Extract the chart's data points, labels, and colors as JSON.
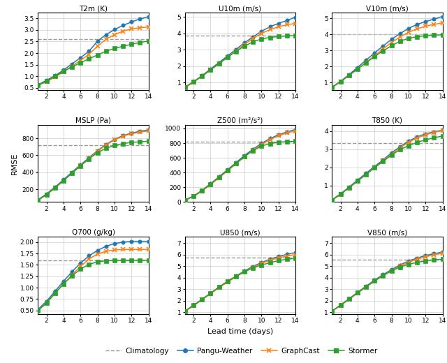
{
  "lead_times": [
    1,
    2,
    3,
    4,
    5,
    6,
    7,
    8,
    9,
    10,
    11,
    12,
    13,
    14
  ],
  "subplots": [
    {
      "title": "T2m (K)",
      "clim": 2.6,
      "ylim": [
        0.4,
        3.75
      ],
      "yticks": [
        0.5,
        1.0,
        1.5,
        2.0,
        2.5,
        3.0,
        3.5
      ],
      "pangu": [
        0.62,
        0.82,
        1.02,
        1.26,
        1.53,
        1.8,
        2.08,
        2.52,
        2.8,
        3.02,
        3.2,
        3.35,
        3.48,
        3.58
      ],
      "graphcast": [
        0.6,
        0.76,
        0.96,
        1.18,
        1.44,
        1.68,
        1.95,
        2.3,
        2.6,
        2.8,
        2.95,
        3.05,
        3.1,
        3.13
      ],
      "stormer": [
        0.6,
        0.78,
        1.0,
        1.2,
        1.4,
        1.58,
        1.75,
        1.92,
        2.08,
        2.2,
        2.3,
        2.38,
        2.46,
        2.52
      ]
    },
    {
      "title": "U10m (m/s)",
      "clim": 3.85,
      "ylim": [
        0.55,
        5.25
      ],
      "yticks": [
        1,
        2,
        3,
        4,
        5
      ],
      "pangu": [
        0.72,
        1.05,
        1.42,
        1.82,
        2.22,
        2.62,
        3.02,
        3.42,
        3.78,
        4.12,
        4.4,
        4.6,
        4.78,
        4.98
      ],
      "graphcast": [
        0.7,
        1.02,
        1.38,
        1.76,
        2.14,
        2.52,
        2.92,
        3.32,
        3.68,
        4.0,
        4.22,
        4.4,
        4.52,
        4.6
      ],
      "stormer": [
        0.72,
        1.05,
        1.4,
        1.78,
        2.16,
        2.54,
        2.9,
        3.22,
        3.48,
        3.65,
        3.75,
        3.8,
        3.84,
        3.86
      ]
    },
    {
      "title": "V10m (m/s)",
      "clim": 4.0,
      "ylim": [
        0.55,
        5.35
      ],
      "yticks": [
        1,
        2,
        3,
        4,
        5
      ],
      "pangu": [
        0.72,
        1.08,
        1.5,
        1.95,
        2.4,
        2.85,
        3.28,
        3.7,
        4.05,
        4.38,
        4.62,
        4.8,
        4.95,
        5.12
      ],
      "graphcast": [
        0.7,
        1.05,
        1.44,
        1.85,
        2.26,
        2.68,
        3.1,
        3.5,
        3.84,
        4.14,
        4.34,
        4.52,
        4.62,
        4.72
      ],
      "stormer": [
        0.72,
        1.08,
        1.46,
        1.86,
        2.24,
        2.62,
        2.98,
        3.3,
        3.58,
        3.76,
        3.86,
        3.92,
        3.95,
        3.98
      ]
    },
    {
      "title": "MSLP (Pa)",
      "clim": 720,
      "ylim": [
        50,
        960
      ],
      "yticks": [
        200,
        400,
        600,
        800
      ],
      "pangu": [
        75,
        145,
        225,
        312,
        402,
        488,
        572,
        655,
        728,
        788,
        832,
        862,
        882,
        900
      ],
      "graphcast": [
        70,
        135,
        215,
        300,
        390,
        478,
        562,
        648,
        720,
        782,
        825,
        855,
        872,
        888
      ],
      "stormer": [
        72,
        138,
        218,
        302,
        390,
        475,
        558,
        632,
        682,
        716,
        738,
        752,
        760,
        765
      ]
    },
    {
      "title": "Z500 (m²/s²)",
      "clim": 815,
      "ylim": [
        0,
        1050
      ],
      "yticks": [
        0,
        200,
        400,
        600,
        800,
        1000
      ],
      "pangu": [
        28,
        80,
        158,
        248,
        342,
        438,
        535,
        632,
        718,
        796,
        862,
        914,
        952,
        985
      ],
      "graphcast": [
        25,
        75,
        148,
        235,
        328,
        422,
        518,
        615,
        702,
        782,
        848,
        900,
        940,
        966
      ],
      "stormer": [
        25,
        78,
        155,
        245,
        338,
        432,
        526,
        618,
        698,
        760,
        795,
        812,
        820,
        825
      ]
    },
    {
      "title": "T850 (K)",
      "clim": 3.35,
      "ylim": [
        0.1,
        4.35
      ],
      "yticks": [
        1,
        2,
        3,
        4
      ],
      "pangu": [
        0.22,
        0.55,
        0.92,
        1.3,
        1.68,
        2.05,
        2.42,
        2.8,
        3.14,
        3.45,
        3.68,
        3.85,
        3.96,
        4.05
      ],
      "graphcast": [
        0.2,
        0.52,
        0.88,
        1.25,
        1.62,
        2.0,
        2.36,
        2.72,
        3.08,
        3.38,
        3.62,
        3.8,
        3.93,
        4.03
      ],
      "stormer": [
        0.2,
        0.52,
        0.88,
        1.25,
        1.62,
        1.98,
        2.33,
        2.68,
        2.98,
        3.2,
        3.38,
        3.52,
        3.63,
        3.73
      ]
    },
    {
      "title": "Q700 (g/kg)",
      "clim": 1.6,
      "ylim": [
        0.42,
        2.12
      ],
      "yticks": [
        0.5,
        0.75,
        1.0,
        1.25,
        1.5,
        1.75,
        2.0
      ],
      "pangu": [
        0.52,
        0.7,
        0.92,
        1.14,
        1.35,
        1.54,
        1.7,
        1.82,
        1.91,
        1.97,
        2.0,
        2.02,
        2.02,
        2.02
      ],
      "graphcast": [
        0.5,
        0.66,
        0.87,
        1.08,
        1.28,
        1.47,
        1.63,
        1.74,
        1.8,
        1.83,
        1.84,
        1.84,
        1.84,
        1.84
      ],
      "stormer": [
        0.5,
        0.66,
        0.88,
        1.08,
        1.26,
        1.41,
        1.51,
        1.57,
        1.59,
        1.6,
        1.6,
        1.6,
        1.6,
        1.6
      ]
    },
    {
      "title": "U850 (m/s)",
      "clim": 5.75,
      "ylim": [
        0.85,
        7.55
      ],
      "yticks": [
        1,
        2,
        3,
        4,
        5,
        6,
        7
      ],
      "pangu": [
        1.1,
        1.6,
        2.12,
        2.65,
        3.18,
        3.68,
        4.14,
        4.58,
        4.98,
        5.32,
        5.6,
        5.84,
        6.02,
        6.18
      ],
      "graphcast": [
        1.08,
        1.56,
        2.08,
        2.6,
        3.12,
        3.62,
        4.08,
        4.52,
        4.9,
        5.24,
        5.5,
        5.72,
        5.88,
        6.0
      ],
      "stormer": [
        1.1,
        1.6,
        2.12,
        2.65,
        3.18,
        3.68,
        4.12,
        4.52,
        4.85,
        5.1,
        5.3,
        5.48,
        5.6,
        5.68
      ]
    },
    {
      "title": "V850 (m/s)",
      "clim": 5.55,
      "ylim": [
        0.85,
        7.55
      ],
      "yticks": [
        1,
        2,
        3,
        4,
        5,
        6,
        7
      ],
      "pangu": [
        1.1,
        1.62,
        2.16,
        2.72,
        3.26,
        3.78,
        4.26,
        4.7,
        5.1,
        5.44,
        5.7,
        5.92,
        6.08,
        6.22
      ],
      "graphcast": [
        1.08,
        1.58,
        2.1,
        2.66,
        3.18,
        3.7,
        4.18,
        4.62,
        5.0,
        5.34,
        5.6,
        5.82,
        5.98,
        6.12
      ],
      "stormer": [
        1.1,
        1.62,
        2.16,
        2.7,
        3.22,
        3.72,
        4.18,
        4.58,
        4.92,
        5.16,
        5.32,
        5.46,
        5.55,
        5.6
      ]
    }
  ],
  "colors": {
    "pangu": "#1f77b4",
    "graphcast": "#ff7f0e",
    "stormer": "#2ca02c",
    "clim": "#999999"
  },
  "xlabel": "Lead time (days)",
  "ylabel": "RMSE"
}
